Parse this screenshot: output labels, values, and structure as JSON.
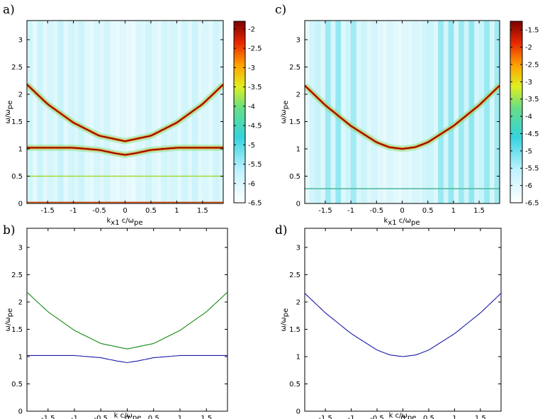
{
  "chart_data": [
    {
      "panel": "a)",
      "type": "heatmap",
      "xlim": [
        -1.9,
        1.9
      ],
      "ylim": [
        0,
        3.35
      ],
      "xticks": [
        -1.5,
        -1,
        -0.5,
        0,
        0.5,
        1,
        1.5
      ],
      "xtick_labels": [
        "-1.5",
        "-1",
        "-0.5",
        "0",
        "0.5",
        "1",
        "1.5"
      ],
      "yticks": [
        0,
        0.5,
        1,
        1.5,
        2,
        2.5,
        3
      ],
      "ytick_labels": [
        "0",
        "0.5",
        "1",
        "1.5",
        "2",
        "2.5",
        "3"
      ],
      "xlabel": {
        "pre": "k",
        "sub1": "x1",
        "mid": " c/ω",
        "sub2": "pe"
      },
      "ylabel": {
        "pre": "ω/ω",
        "sub": "pe"
      },
      "colorbar": {
        "ticks": [
          -2,
          -2.5,
          -3,
          -3.5,
          -4,
          -4.5,
          -5,
          -5.5,
          -6,
          -6.5
        ],
        "tick_labels": [
          "-2",
          "-2.5",
          "-3",
          "-3.5",
          "-4",
          "-4.5",
          "-5",
          "-5.5",
          "-6",
          "-6.5"
        ],
        "range": [
          -6.5,
          -1.8
        ]
      },
      "ridges": [
        {
          "k": [
            -1.9,
            -1.5,
            -1.0,
            -0.5,
            0,
            0.5,
            1.0,
            1.5,
            1.9
          ],
          "omega": [
            2.18,
            1.82,
            1.48,
            1.24,
            1.14,
            1.24,
            1.48,
            1.82,
            2.18
          ]
        },
        {
          "k": [
            -1.9,
            -1.5,
            -1.0,
            -0.5,
            -0.2,
            0,
            0.2,
            0.5,
            1.0,
            1.5,
            1.9
          ],
          "omega": [
            1.02,
            1.02,
            1.02,
            0.98,
            0.92,
            0.89,
            0.92,
            0.98,
            1.02,
            1.02,
            1.02
          ]
        }
      ],
      "lines": [
        {
          "omega": 0.5,
          "color": "#9fdc30"
        },
        {
          "omega": 0.02,
          "color": "#d04000"
        }
      ],
      "stripes": [
        0.55,
        0.15,
        0.65,
        0.25,
        0.45,
        0.3,
        0.7,
        0.2,
        0.5,
        0.35,
        0.6,
        0.25,
        0.15,
        0.45,
        0.3,
        0.5,
        0.2,
        0.1,
        0.3,
        0.15,
        0.05,
        0.35,
        0.25,
        0.55,
        0.3,
        0.15,
        0.5,
        0.35,
        0.45,
        0.2,
        0.55,
        0.3,
        0.6,
        0.25,
        0.4,
        0.2,
        0.55,
        0.35
      ]
    },
    {
      "panel": "b)",
      "type": "line",
      "xlim": [
        -1.9,
        1.9
      ],
      "ylim": [
        0,
        3.35
      ],
      "xticks": [
        -1.5,
        -1,
        -0.5,
        0,
        0.5,
        1,
        1.5
      ],
      "xtick_labels": [
        "-1.5",
        "-1",
        "-0.5",
        "0",
        "0.5",
        "1",
        "1.5"
      ],
      "yticks": [
        0,
        0.5,
        1,
        1.5,
        2,
        2.5,
        3
      ],
      "ytick_labels": [
        "0",
        "0.5",
        "1",
        "1.5",
        "2",
        "2.5",
        "3"
      ],
      "xlabel": {
        "pre": "k c/ω",
        "sub": "pe"
      },
      "ylabel": {
        "pre": "ω/ω",
        "sub": "pe"
      },
      "series": [
        {
          "color": "#138a13",
          "x": [
            -1.9,
            -1.5,
            -1.0,
            -0.5,
            0,
            0.5,
            1.0,
            1.5,
            1.9
          ],
          "y": [
            2.18,
            1.82,
            1.48,
            1.24,
            1.14,
            1.24,
            1.48,
            1.82,
            2.18
          ]
        },
        {
          "color": "#1a1aa8",
          "x": [
            -1.9,
            -1.5,
            -1.0,
            -0.5,
            -0.2,
            0,
            0.2,
            0.5,
            1.0,
            1.5,
            1.9
          ],
          "y": [
            1.02,
            1.02,
            1.02,
            0.98,
            0.92,
            0.89,
            0.92,
            0.98,
            1.02,
            1.02,
            1.02
          ]
        }
      ]
    },
    {
      "panel": "c)",
      "type": "heatmap",
      "xlim": [
        -1.9,
        1.9
      ],
      "ylim": [
        0,
        3.35
      ],
      "xticks": [
        -1.5,
        -1,
        -0.5,
        0,
        0.5,
        1,
        1.5
      ],
      "xtick_labels": [
        "-1.5",
        "-1",
        "-0.5",
        "0",
        "0.5",
        "1",
        "1.5"
      ],
      "yticks": [
        0,
        0.5,
        1,
        1.5,
        2,
        2.5,
        3
      ],
      "ytick_labels": [
        "0",
        "0.5",
        "1",
        "1.5",
        "2",
        "2.5",
        "3"
      ],
      "xlabel": {
        "pre": "k",
        "sub1": "x1",
        "mid": " c/ω",
        "sub2": "pe"
      },
      "ylabel": {
        "pre": "ω/ω",
        "sub": "pe"
      },
      "colorbar": {
        "ticks": [
          -1.5,
          -2,
          -2.5,
          -3,
          -3.5,
          -4,
          -4.5,
          -5,
          -5.5,
          -6,
          -6.5
        ],
        "tick_labels": [
          "-1.5",
          "-2",
          "-2.5",
          "-3",
          "-3.5",
          "-4",
          "-4.5",
          "-5",
          "-5.5",
          "-6",
          "-6.5"
        ],
        "range": [
          -6.5,
          -1.25
        ]
      },
      "ridges": [
        {
          "k": [
            -1.9,
            -1.5,
            -1.0,
            -0.5,
            -0.25,
            0,
            0.25,
            0.5,
            1.0,
            1.5,
            1.9
          ],
          "omega": [
            2.16,
            1.8,
            1.42,
            1.12,
            1.03,
            1.0,
            1.03,
            1.12,
            1.42,
            1.8,
            2.16
          ]
        }
      ],
      "lines": [
        {
          "omega": 0.27,
          "color": "#55bba0"
        }
      ],
      "stripes": [
        0.2,
        0.5,
        0.7,
        0.35,
        0.8,
        0.45,
        0.9,
        0.3,
        0.6,
        0.75,
        0.4,
        0.65,
        0.3,
        0.5,
        0.25,
        0.15,
        0.35,
        0.2,
        0.1,
        0.3,
        0.2,
        0.4,
        0.3,
        0.55,
        0.65,
        0.3,
        0.85,
        0.55,
        0.9,
        0.4,
        0.8,
        0.6,
        0.95,
        0.5,
        0.7,
        0.85,
        0.45,
        0.75
      ]
    },
    {
      "panel": "d)",
      "type": "line",
      "xlim": [
        -1.9,
        1.9
      ],
      "ylim": [
        0,
        3.35
      ],
      "xticks": [
        -1.5,
        -1,
        -0.5,
        0,
        0.5,
        1,
        1.5
      ],
      "xtick_labels": [
        "-1.5",
        "-1",
        "-0.5",
        "0",
        "0.5",
        "1",
        "1.5"
      ],
      "yticks": [
        0,
        0.5,
        1,
        1.5,
        2,
        2.5,
        3
      ],
      "ytick_labels": [
        "0",
        "0.5",
        "1",
        "1.5",
        "2",
        "2.5",
        "3"
      ],
      "xlabel": {
        "pre": "k c/ω",
        "sub": "pe"
      },
      "ylabel": {
        "pre": "ω/ω",
        "sub": "pe"
      },
      "series": [
        {
          "color": "#1a1aa8",
          "x": [
            -1.9,
            -1.5,
            -1.0,
            -0.5,
            -0.25,
            0,
            0.25,
            0.5,
            1.0,
            1.5,
            1.9
          ],
          "y": [
            2.16,
            1.8,
            1.42,
            1.12,
            1.03,
            1.0,
            1.03,
            1.12,
            1.42,
            1.8,
            2.16
          ]
        }
      ]
    }
  ]
}
